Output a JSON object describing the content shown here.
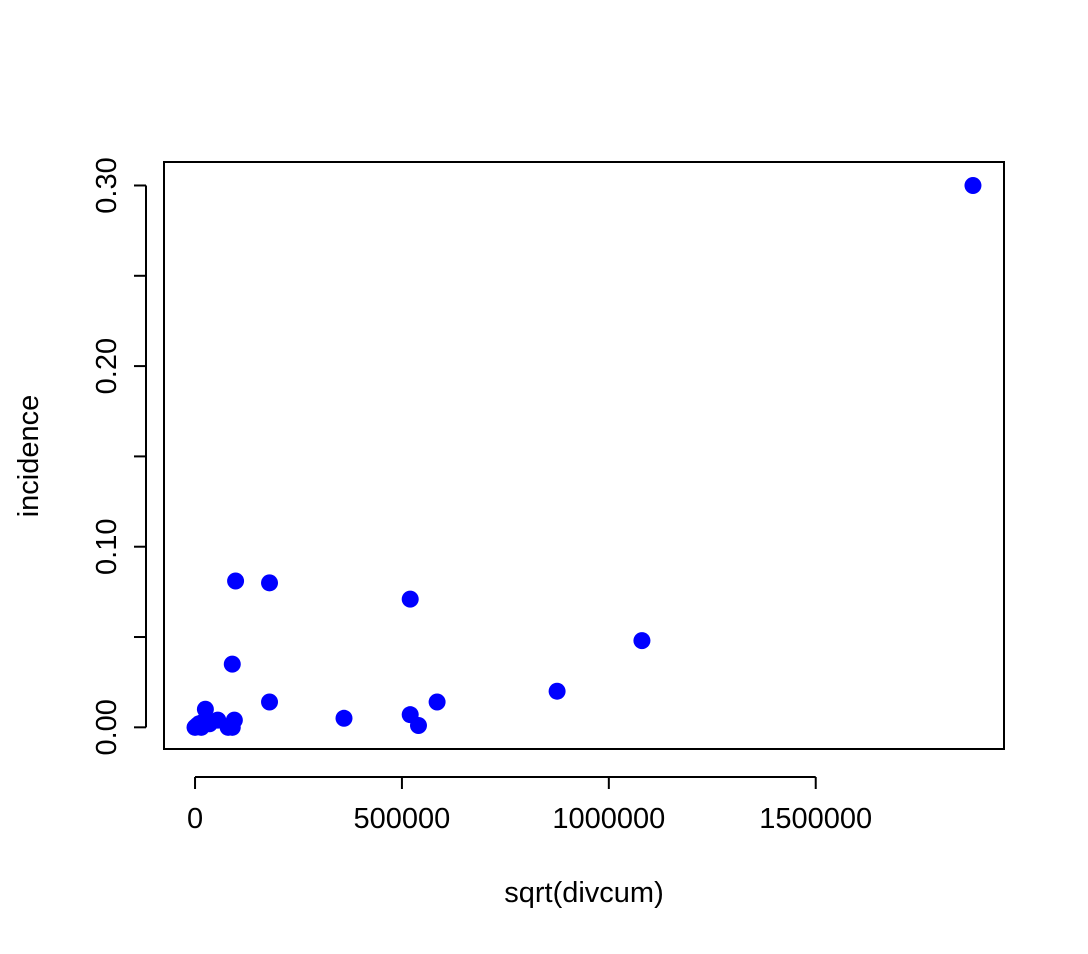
{
  "chart_data": {
    "type": "scatter",
    "title": "",
    "xlabel": "sqrt(divcum)",
    "ylabel": "incidence",
    "xlim": [
      -75000,
      1955000
    ],
    "ylim": [
      -0.012,
      0.313
    ],
    "xticks": [
      0,
      500000,
      1000000,
      1500000
    ],
    "xtick_labels": [
      "0",
      "500000",
      "1000000",
      "1500000"
    ],
    "yticks": [
      0.0,
      0.05,
      0.1,
      0.15,
      0.2,
      0.25,
      0.3
    ],
    "ytick_labels": [
      "0.00",
      "",
      "0.10",
      "",
      "0.20",
      "",
      "0.30"
    ],
    "grid": false,
    "point_color": "#0000ff",
    "points": [
      {
        "x": 0,
        "y": 0.0
      },
      {
        "x": 5000,
        "y": 0.001
      },
      {
        "x": 10000,
        "y": 0.002
      },
      {
        "x": 15000,
        "y": 0.0
      },
      {
        "x": 20000,
        "y": 0.003
      },
      {
        "x": 25000,
        "y": 0.01
      },
      {
        "x": 35000,
        "y": 0.002
      },
      {
        "x": 55000,
        "y": 0.004
      },
      {
        "x": 80000,
        "y": 0.0
      },
      {
        "x": 90000,
        "y": 0.035
      },
      {
        "x": 90000,
        "y": 0.0
      },
      {
        "x": 95000,
        "y": 0.004
      },
      {
        "x": 98000,
        "y": 0.081
      },
      {
        "x": 180000,
        "y": 0.08
      },
      {
        "x": 180000,
        "y": 0.014
      },
      {
        "x": 360000,
        "y": 0.005
      },
      {
        "x": 520000,
        "y": 0.071
      },
      {
        "x": 520000,
        "y": 0.007
      },
      {
        "x": 540000,
        "y": 0.001
      },
      {
        "x": 585000,
        "y": 0.014
      },
      {
        "x": 875000,
        "y": 0.02
      },
      {
        "x": 1080000,
        "y": 0.048
      },
      {
        "x": 1880000,
        "y": 0.3
      }
    ]
  }
}
